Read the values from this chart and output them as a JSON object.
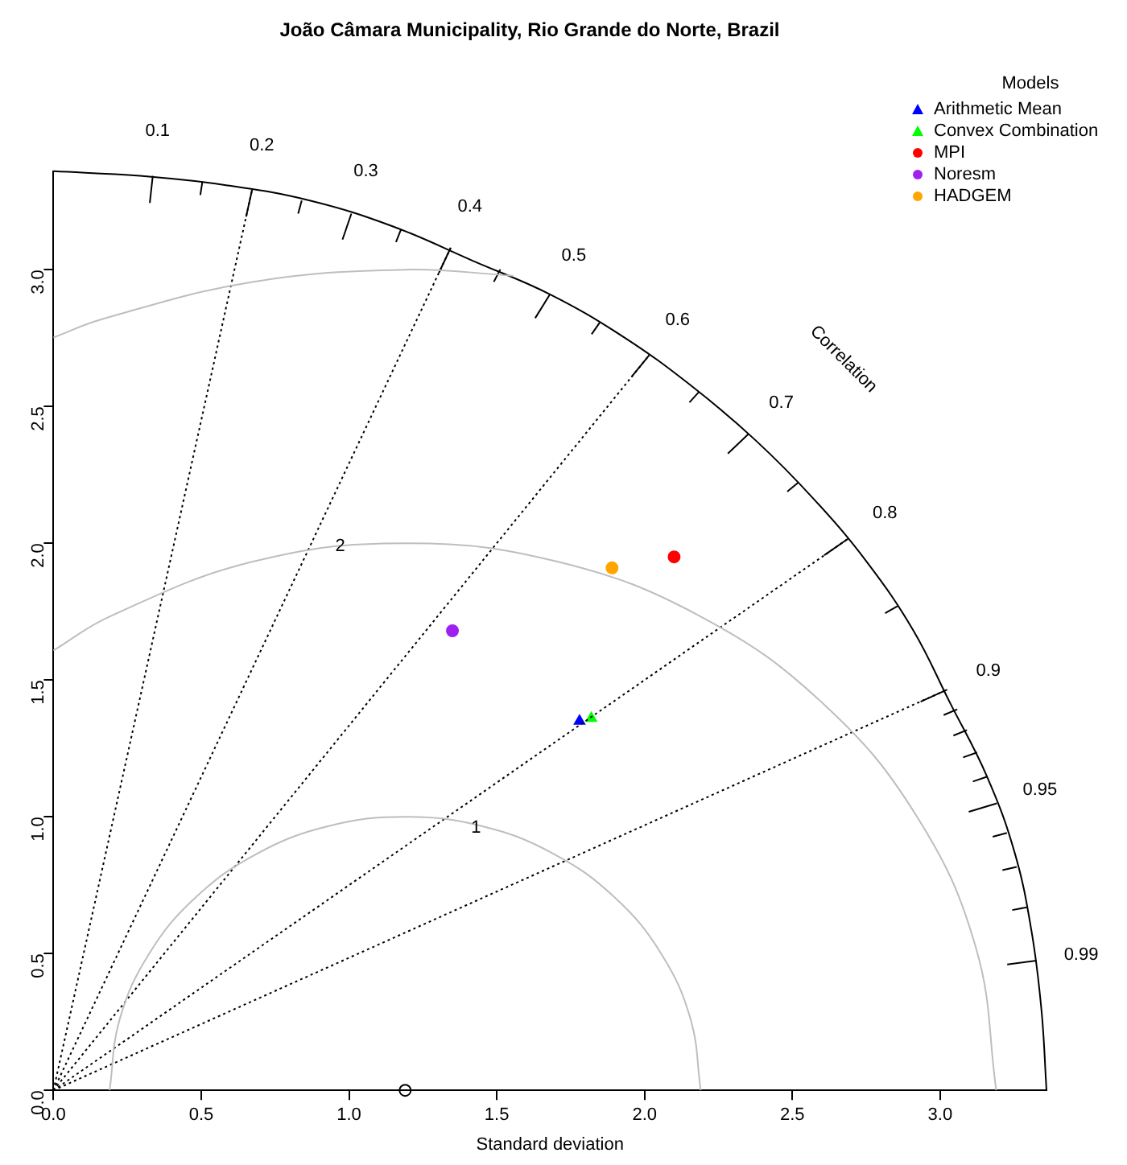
{
  "chart_data": {
    "type": "scatter",
    "title": "João Câmara Municipality, Rio Grande do Norte, Brazil",
    "xlabel": "Standard deviation",
    "legend_title": "Models",
    "legend": "top right",
    "xlim": [
      0,
      3.36
    ],
    "ylim": [
      0,
      3.36
    ],
    "xticks": [
      {
        "value": 0,
        "label": "0.0"
      },
      {
        "value": 0.5,
        "label": "0.5"
      },
      {
        "value": 1,
        "label": "1.0"
      },
      {
        "value": 1.5,
        "label": "1.5"
      },
      {
        "value": 2,
        "label": "2.0"
      },
      {
        "value": 2.5,
        "label": "2.5"
      },
      {
        "value": 3,
        "label": "3.0"
      }
    ],
    "yticks": [
      {
        "value": 0,
        "label": "0.0"
      },
      {
        "value": 0.5,
        "label": "0.5"
      },
      {
        "value": 1,
        "label": "1.0"
      },
      {
        "value": 1.5,
        "label": "1.5"
      },
      {
        "value": 2,
        "label": "2.0"
      },
      {
        "value": 2.5,
        "label": "2.5"
      },
      {
        "value": 3,
        "label": "3.0"
      }
    ],
    "series": [
      {
        "type": "line",
        "color": "#bebebe",
        "marker": "none",
        "x": [
          2.19,
          2.156,
          2.056,
          1.897,
          1.69,
          1.449,
          1.19,
          0.931,
          0.69,
          0.483,
          0.324,
          0.224,
          0.19
        ],
        "values": [
          0,
          0.259,
          0.5,
          0.707,
          0.866,
          0.966,
          1,
          0.966,
          0.866,
          0.707,
          0.5,
          0.259,
          0
        ]
      },
      {
        "type": "line",
        "color": "#bebebe",
        "marker": "none",
        "x": [
          3.19,
          3.122,
          2.922,
          2.604,
          2.19,
          1.708,
          1.19,
          0.672,
          0.19,
          0
        ],
        "values": [
          0,
          0.518,
          1,
          1.414,
          1.732,
          1.932,
          2,
          1.932,
          1.732,
          1.608
        ]
      },
      {
        "type": "line",
        "color": "#bebebe",
        "marker": "none",
        "x": [
          1.556,
          1.19,
          0.669,
          0.164,
          0
        ],
        "values": [
          2.978,
          3,
          2.954,
          2.819,
          2.752
        ]
      },
      {
        "type": "line",
        "color": "#000000",
        "marker": "none",
        "line_style": "dotted",
        "x": [
          0,
          0.672
        ],
        "values": [
          0,
          3.292
        ]
      },
      {
        "type": "line",
        "color": "#000000",
        "marker": "none",
        "line_style": "dotted",
        "x": [
          0,
          1.344
        ],
        "values": [
          0,
          3.08
        ]
      },
      {
        "type": "line",
        "color": "#000000",
        "marker": "none",
        "line_style": "dotted",
        "x": [
          0,
          2.016
        ],
        "values": [
          0,
          2.688
        ]
      },
      {
        "type": "line",
        "color": "#000000",
        "marker": "none",
        "line_style": "dotted",
        "x": [
          0,
          2.688
        ],
        "values": [
          0,
          2.016
        ]
      },
      {
        "type": "line",
        "color": "#000000",
        "marker": "none",
        "line_style": "dotted",
        "x": [
          0,
          3.024
        ],
        "values": [
          0,
          1.465
        ]
      },
      {
        "type": "line",
        "color": "#000000",
        "marker": "none",
        "x": [
          3.36,
          3.343,
          3.309,
          3.252,
          3.158,
          3.032,
          2.91,
          2.754,
          2.574,
          2.376,
          2.16,
          1.929,
          1.68,
          1.42,
          1.149,
          0.87,
          0.584,
          0.293,
          0
        ],
        "values": [
          0,
          0.293,
          0.584,
          0.87,
          1.149,
          1.42,
          1.68,
          1.929,
          2.16,
          2.376,
          2.574,
          2.754,
          2.91,
          3.032,
          3.158,
          3.252,
          3.309,
          3.343,
          3.36
        ]
      },
      {
        "type": "line",
        "color": "#000000",
        "marker": "none",
        "x": [
          0.326,
          0.336
        ],
        "values": [
          3.244,
          3.343
        ]
      },
      {
        "type": "line",
        "color": "#000000",
        "marker": "none",
        "x": [
          0.652,
          0.672
        ],
        "values": [
          3.194,
          3.292
        ]
      },
      {
        "type": "line",
        "color": "#000000",
        "marker": "none",
        "x": [
          0.978,
          1.008
        ],
        "values": [
          3.11,
          3.205
        ]
      },
      {
        "type": "line",
        "color": "#000000",
        "marker": "none",
        "x": [
          1.304,
          1.344
        ],
        "values": [
          2.988,
          3.08
        ]
      },
      {
        "type": "line",
        "color": "#000000",
        "marker": "none",
        "x": [
          1.63,
          1.68
        ],
        "values": [
          2.823,
          2.91
        ]
      },
      {
        "type": "line",
        "color": "#000000",
        "marker": "none",
        "x": [
          1.956,
          2.016
        ],
        "values": [
          2.608,
          2.688
        ]
      },
      {
        "type": "line",
        "color": "#000000",
        "marker": "none",
        "x": [
          2.282,
          2.352
        ],
        "values": [
          2.328,
          2.4
        ]
      },
      {
        "type": "line",
        "color": "#000000",
        "marker": "none",
        "x": [
          2.608,
          2.688
        ],
        "values": [
          1.956,
          2.016
        ]
      },
      {
        "type": "line",
        "color": "#000000",
        "marker": "none",
        "x": [
          2.934,
          3.024
        ],
        "values": [
          1.421,
          1.465
        ]
      },
      {
        "type": "line",
        "color": "#000000",
        "marker": "none",
        "x": [
          3.097,
          3.192
        ],
        "values": [
          1.018,
          1.049
        ]
      },
      {
        "type": "line",
        "color": "#000000",
        "marker": "none",
        "x": [
          3.227,
          3.326
        ],
        "values": [
          0.46,
          0.474
        ]
      },
      {
        "type": "line",
        "color": "#000000",
        "marker": "none",
        "x": [
          0.497,
          0.504
        ],
        "values": [
          3.273,
          3.322
        ]
      },
      {
        "type": "line",
        "color": "#000000",
        "marker": "none",
        "x": [
          0.828,
          0.84
        ],
        "values": [
          3.205,
          3.253
        ]
      },
      {
        "type": "line",
        "color": "#000000",
        "marker": "none",
        "x": [
          1.159,
          1.176
        ],
        "values": [
          3.101,
          3.147
        ]
      },
      {
        "type": "line",
        "color": "#000000",
        "marker": "none",
        "x": [
          1.49,
          1.512
        ],
        "values": [
          2.956,
          3.001
        ]
      },
      {
        "type": "line",
        "color": "#000000",
        "marker": "none",
        "x": [
          1.821,
          1.848
        ],
        "values": [
          2.764,
          2.806
        ]
      },
      {
        "type": "line",
        "color": "#000000",
        "marker": "none",
        "x": [
          2.152,
          2.184
        ],
        "values": [
          2.515,
          2.553
        ]
      },
      {
        "type": "line",
        "color": "#000000",
        "marker": "none",
        "x": [
          2.483,
          2.52
        ],
        "values": [
          2.189,
          2.222
        ]
      },
      {
        "type": "line",
        "color": "#000000",
        "marker": "none",
        "x": [
          2.814,
          2.856
        ],
        "values": [
          1.744,
          1.77
        ]
      },
      {
        "type": "line",
        "color": "#000000",
        "marker": "none",
        "x": [
          3.012,
          3.058
        ],
        "values": [
          1.372,
          1.393
        ]
      },
      {
        "type": "line",
        "color": "#000000",
        "marker": "none",
        "x": [
          3.045,
          3.091
        ],
        "values": [
          1.297,
          1.317
        ]
      },
      {
        "type": "line",
        "color": "#000000",
        "marker": "none",
        "x": [
          3.078,
          3.125
        ],
        "values": [
          1.217,
          1.235
        ]
      },
      {
        "type": "line",
        "color": "#000000",
        "marker": "none",
        "x": [
          3.111,
          3.158
        ],
        "values": [
          1.129,
          1.146
        ]
      },
      {
        "type": "line",
        "color": "#000000",
        "marker": "none",
        "x": [
          3.178,
          3.226
        ],
        "values": [
          0.927,
          0.941
        ]
      },
      {
        "type": "line",
        "color": "#000000",
        "marker": "none",
        "x": [
          3.211,
          3.259
        ],
        "values": [
          0.805,
          0.817
        ]
      },
      {
        "type": "line",
        "color": "#000000",
        "marker": "none",
        "x": [
          3.244,
          3.293
        ],
        "values": [
          0.659,
          0.669
        ]
      },
      {
        "name": "Arithmetic Mean",
        "color": "#0000ff",
        "marker": "triangle",
        "x": [
          1.78
        ],
        "values": [
          1.35
        ]
      },
      {
        "name": "Convex Combination",
        "color": "#00ff00",
        "marker": "triangle",
        "x": [
          1.82
        ],
        "values": [
          1.36
        ]
      },
      {
        "name": "MPI",
        "color": "#ff0000",
        "marker": "circle",
        "x": [
          2.1
        ],
        "values": [
          1.95
        ]
      },
      {
        "name": "Noresm",
        "color": "#a020f0",
        "marker": "circle",
        "x": [
          1.35
        ],
        "values": [
          1.68
        ]
      },
      {
        "name": "HADGEM",
        "color": "#ffa500",
        "marker": "circle",
        "x": [
          1.89
        ],
        "values": [
          1.91
        ]
      },
      {
        "color": "#000000",
        "marker": "circle",
        "x": [
          1.19
        ],
        "values": [
          0
        ]
      }
    ],
    "annotations": [
      {
        "text": "0.1",
        "x": 0.336,
        "y": 3.343
      },
      {
        "text": "0.2",
        "x": 0.672,
        "y": 3.292
      },
      {
        "text": "0.3",
        "x": 1.008,
        "y": 3.205
      },
      {
        "text": "0.4",
        "x": 1.344,
        "y": 3.08
      },
      {
        "text": "0.5",
        "x": 1.68,
        "y": 2.91
      },
      {
        "text": "0.6",
        "x": 2.016,
        "y": 2.688
      },
      {
        "text": "0.7",
        "x": 2.352,
        "y": 2.4
      },
      {
        "text": "0.8",
        "x": 2.688,
        "y": 2.016
      },
      {
        "text": "0.9",
        "x": 3.024,
        "y": 1.465
      },
      {
        "text": "0.95",
        "x": 3.192,
        "y": 1.049
      },
      {
        "text": "0.99",
        "x": 3.326,
        "y": 0.474
      },
      "Correlation",
      {
        "text": "1",
        "x": 1.43,
        "y": 0.96
      },
      {
        "text": "2",
        "x": 0.97,
        "y": 1.99
      }
    ]
  }
}
